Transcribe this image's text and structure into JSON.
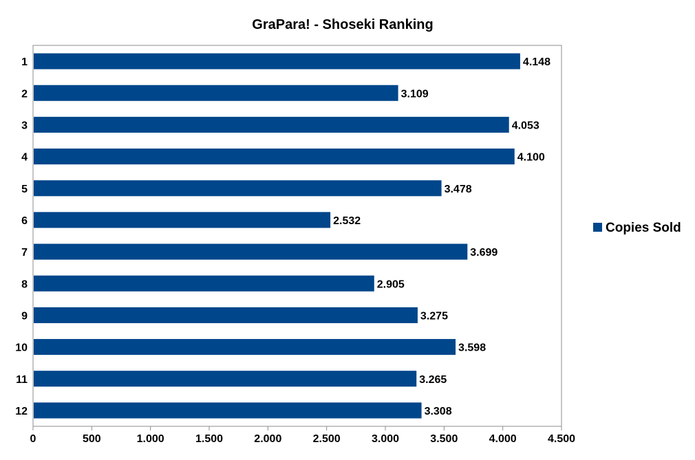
{
  "chart_data": {
    "type": "bar",
    "orientation": "horizontal",
    "title": "GraPara! - Shoseki Ranking",
    "xlabel": "",
    "ylabel": "",
    "categories": [
      "1",
      "2",
      "3",
      "4",
      "5",
      "6",
      "7",
      "8",
      "9",
      "10",
      "11",
      "12"
    ],
    "series": [
      {
        "name": "Copies Sold",
        "color": "#00468B",
        "values": [
          4148,
          3109,
          4053,
          4100,
          3478,
          2532,
          3699,
          2905,
          3275,
          3598,
          3265,
          3308
        ],
        "labels": [
          "4.148",
          "3.109",
          "4.053",
          "4.100",
          "3.478",
          "2.532",
          "3.699",
          "2.905",
          "3.275",
          "3.598",
          "3.265",
          "3.308"
        ]
      }
    ],
    "xlim": [
      0,
      4500
    ],
    "xticks": [
      0,
      500,
      1000,
      1500,
      2000,
      2500,
      3000,
      3500,
      4000,
      4500
    ],
    "xtick_labels": [
      "0",
      "500",
      "1.000",
      "1.500",
      "2.000",
      "2.500",
      "3.000",
      "3.500",
      "4.000",
      "4.500"
    ],
    "grid": false,
    "legend": {
      "position": "right",
      "entries": [
        "Copies Sold"
      ]
    },
    "colors": {
      "bar": "#00468B",
      "axis": "#8C8C8C",
      "text": "#000000"
    }
  }
}
